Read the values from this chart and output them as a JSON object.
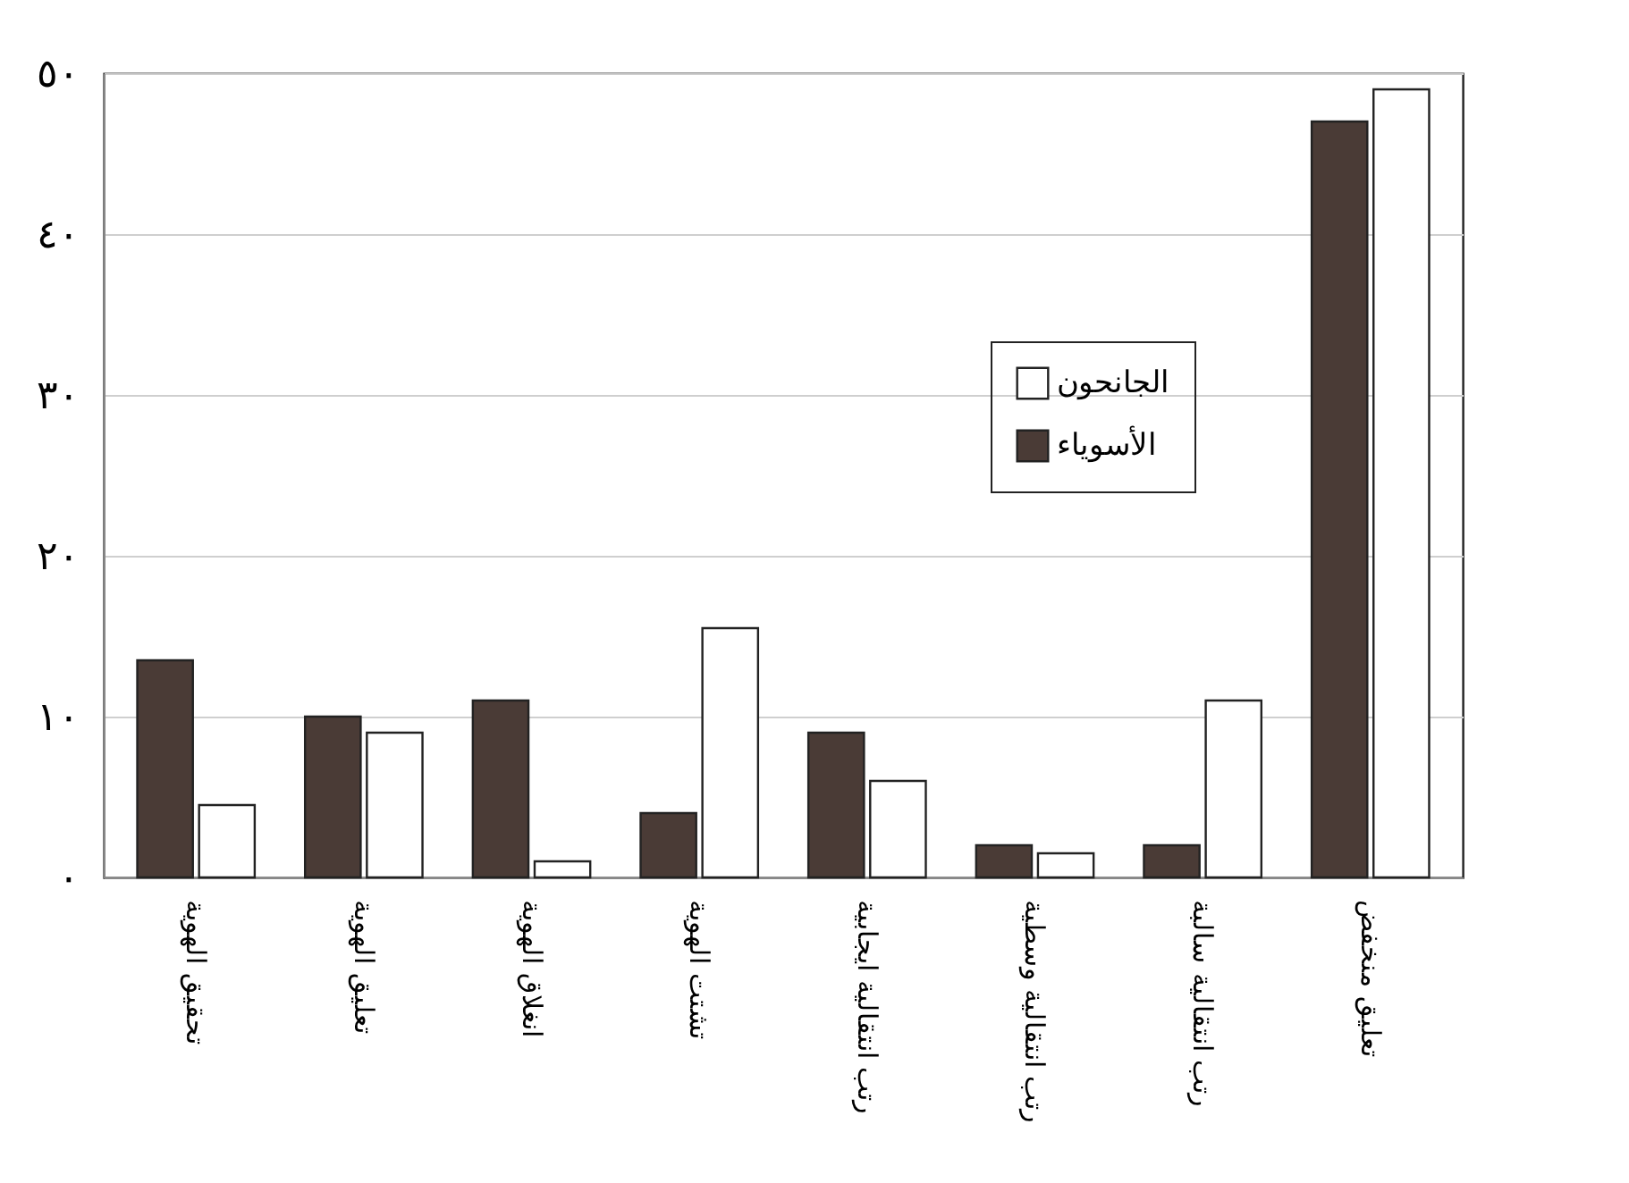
{
  "chart_data": {
    "type": "bar",
    "categories": [
      "تحقيق الهوية",
      "تعليق الهوية",
      "انغلاق الهوية",
      "تشتت الهوية",
      "رتب انتقالية ايجابية",
      "رتب انتقالية وسطية",
      "رتب انتقالية سالبة",
      "تعليق منخفض"
    ],
    "series": [
      {
        "name": "الأسوياء",
        "color": "#4a3b36",
        "values": [
          13.5,
          10,
          11,
          4,
          9,
          2,
          2,
          47
        ]
      },
      {
        "name": "الجانحون",
        "color": "#ffffff",
        "values": [
          4.5,
          9,
          1,
          15.5,
          6,
          1.5,
          11,
          49
        ]
      }
    ],
    "ylim": [
      0,
      50
    ],
    "yticks": [
      {
        "value": 0,
        "label": "٠"
      },
      {
        "value": 10,
        "label": "١٠"
      },
      {
        "value": 20,
        "label": "٢٠"
      },
      {
        "value": 30,
        "label": "٣٠"
      },
      {
        "value": 40,
        "label": "٤٠"
      },
      {
        "value": 50,
        "label": "٥٠"
      }
    ],
    "grid": "y",
    "legend": "top right"
  }
}
